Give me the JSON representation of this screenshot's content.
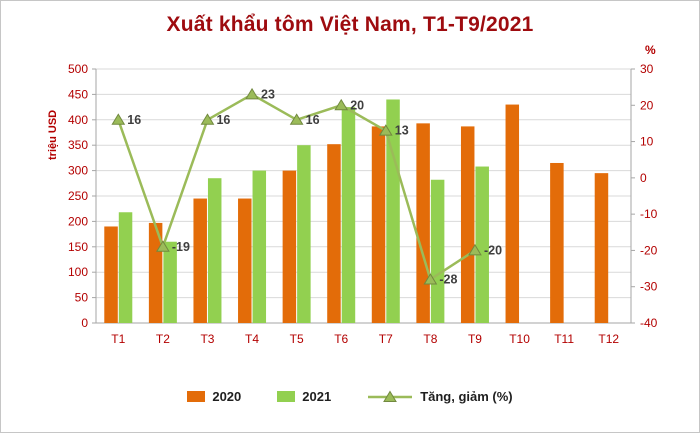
{
  "chart_data": {
    "type": "combo-bar-line",
    "title": "Xuất khẩu tôm Việt Nam, T1-T9/2021",
    "ylabel": "triệu USD",
    "y2label": "%",
    "categories": [
      "T1",
      "T2",
      "T3",
      "T4",
      "T5",
      "T6",
      "T7",
      "T8",
      "T9",
      "T10",
      "T11",
      "T12"
    ],
    "series": [
      {
        "name": "2020",
        "color": "#E36C09",
        "values": [
          190,
          197,
          245,
          245,
          300,
          352,
          387,
          393,
          387,
          430,
          315,
          295
        ]
      },
      {
        "name": "2021",
        "color": "#92D050",
        "values": [
          218,
          160,
          285,
          300,
          350,
          425,
          440,
          282,
          308,
          null,
          null,
          null
        ]
      }
    ],
    "line": {
      "name": "Tăng, giảm (%)",
      "color": "#9BBB59",
      "marker_stroke": "#71893F",
      "values": [
        16,
        -19,
        16,
        23,
        16,
        20,
        13,
        -28,
        -20,
        null,
        null,
        null
      ]
    },
    "ylim": [
      0,
      500
    ],
    "ytick_step": 50,
    "y2lim": [
      -40,
      30
    ],
    "y2tick_step": 10,
    "grid": true,
    "legend_position": "bottom"
  },
  "style": {
    "title_color": "#9E0B0F",
    "tick_color": "#B30000",
    "grid_color": "#D9D9D9",
    "axis_color": "#A6A6A6",
    "label_color": "#3F3F3F"
  }
}
